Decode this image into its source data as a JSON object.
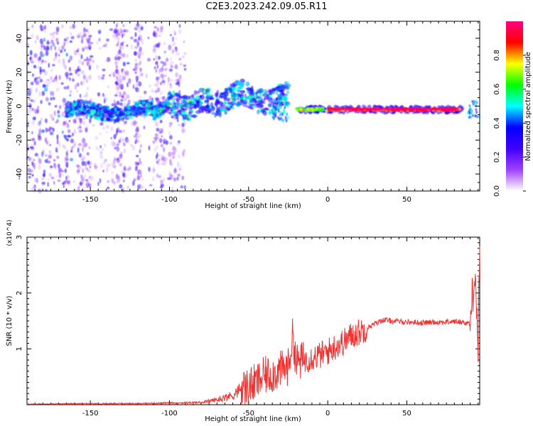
{
  "page": {
    "title": "C2E3.2023.242.09.05.R11"
  },
  "chart_data": [
    {
      "type": "heatmap",
      "xlabel": "Height of straight line (km)",
      "ylabel": "Frequency (Hz)",
      "xlim": [
        -190,
        96
      ],
      "ylim": [
        -50,
        50
      ],
      "x_ticks": [
        -150,
        -100,
        -50,
        0,
        50
      ],
      "y_ticks": [
        -40,
        -20,
        0,
        20,
        40
      ],
      "colorbar": {
        "label": "Normalized spectral amplitude",
        "range": [
          0,
          1
        ],
        "ticks": [
          "0.0",
          "0.2",
          "0.4",
          "0.6",
          "0.8"
        ],
        "colormap": [
          "#ffffff",
          "#a040ff",
          "#4000ff",
          "#0000ff",
          "#00ffff",
          "#00ff00",
          "#ffff00",
          "#ff0000",
          "#ff0080"
        ]
      },
      "regions": [
        {
          "name": "scattered noise",
          "x": [
            -190,
            -90
          ],
          "freq": [
            -50,
            48
          ],
          "level": [
            0.05,
            0.35
          ]
        },
        {
          "name": "emerging signal",
          "x": [
            -165,
            -25
          ],
          "freq": [
            -8,
            12
          ],
          "level": [
            0.2,
            0.55
          ]
        },
        {
          "name": "strong narrowband line",
          "x": [
            -20,
            85
          ],
          "freq": [
            -4,
            0
          ],
          "level": [
            0.7,
            1.0
          ]
        }
      ]
    },
    {
      "type": "line",
      "xlabel": "Height of straight line (km)",
      "ylabel": "SNR (10 * v/v)",
      "y_scale_label": "(x10^4)",
      "xlim": [
        -190,
        96
      ],
      "ylim": [
        0,
        3
      ],
      "x_ticks": [
        -150,
        -100,
        -50,
        0,
        50
      ],
      "y_ticks": [
        1,
        2,
        3
      ],
      "color": "#ee3333",
      "series": [
        {
          "x": [
            -190,
            -150,
            -120,
            -100,
            -80,
            -70,
            -60,
            -55,
            -50,
            -45,
            -40,
            -35,
            -30,
            -25,
            -22,
            -20,
            -15,
            -10,
            -5,
            0,
            5,
            10,
            15,
            20,
            25,
            30,
            35,
            40,
            50,
            60,
            70,
            75,
            80,
            85,
            90,
            93,
            95,
            96
          ],
          "values": [
            0.01,
            0.02,
            0.02,
            0.03,
            0.04,
            0.09,
            0.17,
            0.28,
            0.33,
            0.4,
            0.52,
            0.55,
            0.62,
            0.68,
            1.25,
            0.75,
            0.8,
            0.85,
            0.88,
            0.95,
            1.05,
            1.12,
            1.24,
            1.3,
            1.38,
            1.45,
            1.52,
            1.5,
            1.48,
            1.47,
            1.48,
            1.48,
            1.49,
            1.48,
            1.45,
            2.5,
            1.0,
            3.0
          ]
        }
      ]
    }
  ]
}
